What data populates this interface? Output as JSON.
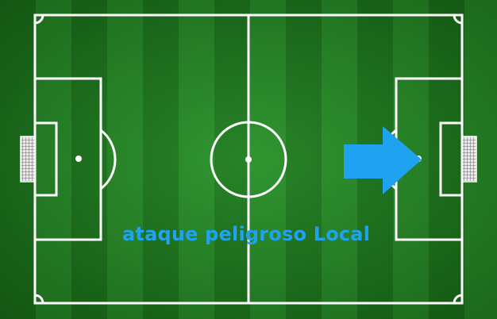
{
  "event": {
    "text": "ataque peligroso Local",
    "team": "Local",
    "direction": "right",
    "color": "#1fa3f0"
  },
  "pitch": {
    "line_color": "#ffffff",
    "grass_dark": "#1d6f1d",
    "grass_light": "#2a8a2a"
  }
}
